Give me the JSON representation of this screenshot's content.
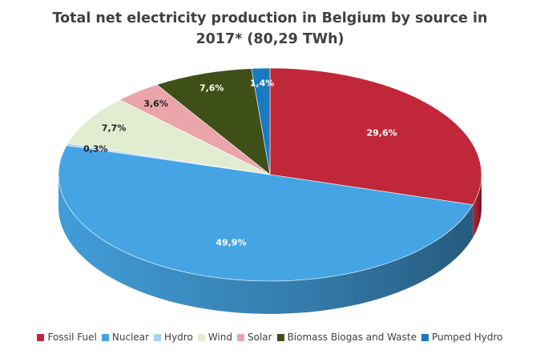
{
  "chart_data": {
    "type": "pie",
    "title_lines": [
      "Total net electricity production in Belgium by source in",
      "2017* (80,29 TWh)"
    ],
    "slices": [
      {
        "name": "Fossil Fuel",
        "value": 29.6,
        "label": "29,6%",
        "color": "#c0283a",
        "side_color": "#8c1c2a"
      },
      {
        "name": "Nuclear",
        "value": 49.9,
        "label": "49,9%",
        "color": "#45a5e4",
        "side_color": "#2a6fa6"
      },
      {
        "name": "Hydro",
        "value": 0.3,
        "label": "0,3%",
        "color": "#a8d3f2",
        "side_color": "#7fb0d6"
      },
      {
        "name": "Wind",
        "value": 7.7,
        "label": "7,7%",
        "color": "#e2ecd0",
        "side_color": "#b8c4a4"
      },
      {
        "name": "Solar",
        "value": 3.6,
        "label": "3,6%",
        "color": "#eaa4aa",
        "side_color": "#c07c82"
      },
      {
        "name": "Biomass Biogas and Waste",
        "value": 7.6,
        "label": "7,6%",
        "color": "#3f4f18",
        "side_color": "#2a3510"
      },
      {
        "name": "Pumped Hydro",
        "value": 1.4,
        "label": "1,4%",
        "color": "#1a7ac0",
        "side_color": "#125a8e"
      }
    ],
    "legend_position": "bottom"
  }
}
